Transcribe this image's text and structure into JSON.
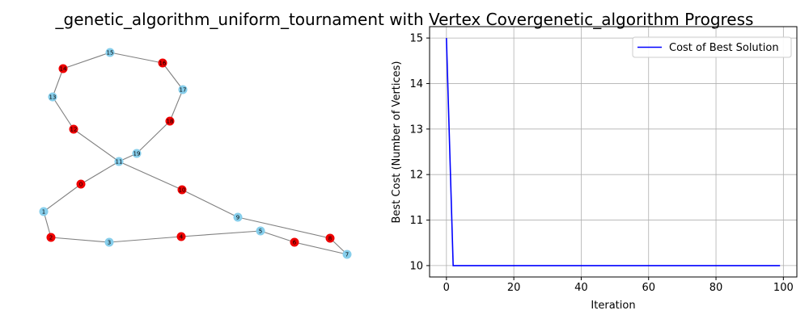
{
  "figure": {
    "title": "_genetic_algorithm_uniform_tournament with Vertex Covergenetic_algorithm Progress"
  },
  "chart_data": [
    {
      "type": "graph",
      "node_colors": {
        "in_cover": "#ee0000",
        "not_in_cover": "#87ceeb"
      },
      "edge_color": "#808080",
      "nodes": [
        {
          "id": "1",
          "label": "1",
          "in_cover": false
        },
        {
          "id": "2",
          "label": "2",
          "in_cover": true
        },
        {
          "id": "3",
          "label": "3",
          "in_cover": false
        },
        {
          "id": "4",
          "label": "4",
          "in_cover": true
        },
        {
          "id": "5",
          "label": "5",
          "in_cover": false
        },
        {
          "id": "6",
          "label": "6",
          "in_cover": true
        },
        {
          "id": "7",
          "label": "7",
          "in_cover": false
        },
        {
          "id": "8",
          "label": "8",
          "in_cover": true
        },
        {
          "id": "9",
          "label": "9",
          "in_cover": false
        },
        {
          "id": "10",
          "label": "10",
          "in_cover": true
        },
        {
          "id": "11",
          "label": "11",
          "in_cover": false
        },
        {
          "id": "12",
          "label": "12",
          "in_cover": true
        },
        {
          "id": "13",
          "label": "13",
          "in_cover": false
        },
        {
          "id": "14",
          "label": "14",
          "in_cover": true
        },
        {
          "id": "15",
          "label": "15",
          "in_cover": false
        },
        {
          "id": "16",
          "label": "16",
          "in_cover": true
        },
        {
          "id": "17",
          "label": "17",
          "in_cover": false
        },
        {
          "id": "18",
          "label": "18",
          "in_cover": true
        },
        {
          "id": "19",
          "label": "19",
          "in_cover": false
        },
        {
          "id": "0",
          "label": "0",
          "in_cover": true
        }
      ],
      "edges": [
        [
          "1",
          "2"
        ],
        [
          "2",
          "3"
        ],
        [
          "3",
          "4"
        ],
        [
          "4",
          "5"
        ],
        [
          "5",
          "6"
        ],
        [
          "6",
          "7"
        ],
        [
          "7",
          "8"
        ],
        [
          "8",
          "9"
        ],
        [
          "9",
          "10"
        ],
        [
          "10",
          "11"
        ],
        [
          "11",
          "12"
        ],
        [
          "12",
          "13"
        ],
        [
          "13",
          "14"
        ],
        [
          "14",
          "15"
        ],
        [
          "15",
          "16"
        ],
        [
          "16",
          "17"
        ],
        [
          "17",
          "18"
        ],
        [
          "18",
          "19"
        ],
        [
          "19",
          "11"
        ],
        [
          "11",
          "0"
        ],
        [
          "0",
          "1"
        ]
      ]
    },
    {
      "type": "line",
      "xlabel": "Iteration",
      "ylabel": "Best Cost (Number of Vertices)",
      "xlim": [
        -5,
        104
      ],
      "ylim": [
        9.75,
        15.25
      ],
      "xticks": [
        0,
        20,
        40,
        60,
        80,
        100
      ],
      "yticks": [
        10,
        11,
        12,
        13,
        14,
        15
      ],
      "grid": true,
      "legend_position": "top-right",
      "series": [
        {
          "name": "Cost of Best Solution",
          "color": "#0000ff",
          "x": [
            0,
            2,
            99
          ],
          "y": [
            15,
            10,
            10
          ]
        }
      ]
    }
  ]
}
